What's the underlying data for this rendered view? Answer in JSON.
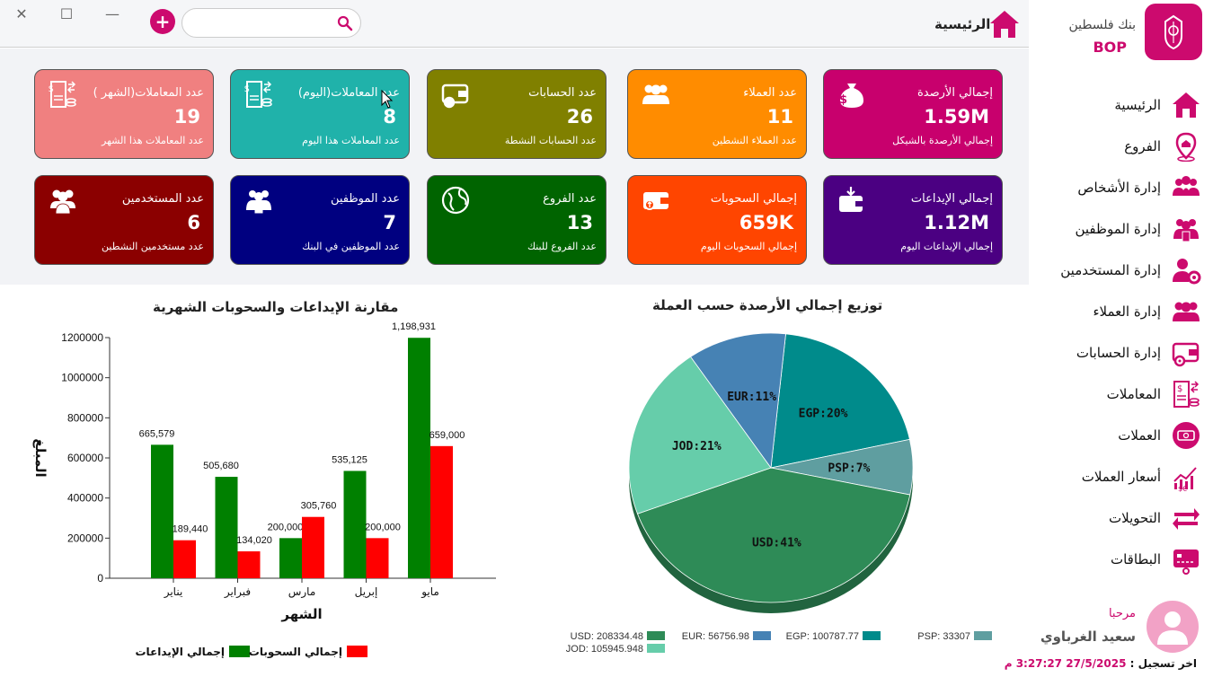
{
  "window": {
    "close": "✕",
    "maximize": "☐",
    "minimize": "—"
  },
  "topbar": {
    "title": "الرئيسية",
    "search_placeholder": "",
    "search_value": "",
    "add_label": "+"
  },
  "bank": {
    "name": "بنك فلسطين",
    "code": "BOP"
  },
  "sidebar": {
    "items": [
      {
        "label": "الرئيسية",
        "icon": "home-icon"
      },
      {
        "label": "الفروع",
        "icon": "branch-pin-icon"
      },
      {
        "label": "إدارة الأشخاص",
        "icon": "people-icon"
      },
      {
        "label": "إدارة الموظفين",
        "icon": "employees-icon"
      },
      {
        "label": "إدارة المستخدمين",
        "icon": "user-gear-icon"
      },
      {
        "label": "إدارة العملاء",
        "icon": "clients-icon"
      },
      {
        "label": "إدارة الحسابات",
        "icon": "wallet-gear-icon"
      },
      {
        "label": "المعاملات",
        "icon": "transactions-icon"
      },
      {
        "label": "العملات",
        "icon": "currency-icon"
      },
      {
        "label": "أسعار العملات",
        "icon": "exchange-rate-icon"
      },
      {
        "label": "التحويلات",
        "icon": "transfer-icon"
      },
      {
        "label": "البطاقات",
        "icon": "card-icon"
      }
    ]
  },
  "user": {
    "greeting": "مرحبا",
    "name": "سعيد الغرباوي",
    "last_login_label": "اخر تسجيل :",
    "last_login_value": "27/5/2025 3:27:27 م"
  },
  "colors": {
    "accent": "#cc0a6e"
  },
  "cards": [
    {
      "title": "إجمالي الأرصدة",
      "value": "1.59M",
      "sub": "إجمالي الأرصدة بالشيكل",
      "color": "#c8006d",
      "icon": "money-bag-icon"
    },
    {
      "title": "عدد العملاء",
      "value": "11",
      "sub": "عدد العملاء النشطين",
      "color": "#ff8c00",
      "icon": "clients-icon"
    },
    {
      "title": "عدد الحسابات",
      "value": "26",
      "sub": "عدد الحسابات النشطة",
      "color": "#808000",
      "icon": "wallet-gear-icon"
    },
    {
      "title": "عدد المعاملات(اليوم)",
      "value": "8",
      "sub": "عدد المعاملات  هذا اليوم",
      "color": "#20b2aa",
      "icon": "transactions-icon"
    },
    {
      "title": "عدد المعاملات(الشهر )",
      "value": "19",
      "sub": "عدد المعاملات هذا الشهر",
      "color": "#f08080",
      "icon": "transactions-icon"
    },
    {
      "title": "إجمالي الإيداعات",
      "value": "1.12M",
      "sub": "إجمالي الإيداعات اليوم",
      "color": "#4b0082",
      "icon": "deposit-wallet-icon"
    },
    {
      "title": "إجمالي السحوبات",
      "value": "659K",
      "sub": "إجمالي السحوبات اليوم",
      "color": "#ff4500",
      "icon": "withdraw-wallet-icon"
    },
    {
      "title": "عدد الفروع",
      "value": "13",
      "sub": "عدد الفروع للبنك",
      "color": "#006400",
      "icon": "globe-icon"
    },
    {
      "title": "عدد الموظفين",
      "value": "7",
      "sub": "عدد الموظفين في البنك",
      "color": "#000080",
      "icon": "employees-icon"
    },
    {
      "title": "عدد المستخدمين",
      "value": "6",
      "sub": "عدد مستخدمين  النشطين",
      "color": "#8b0000",
      "icon": "users-icon"
    }
  ],
  "pie": {
    "title": "توزيع إجمالي الأرصدة حسب العملة",
    "legend": [
      {
        "label": "USD: 208334.48",
        "color": "#2e8b57"
      },
      {
        "label": "EUR: 56756.98",
        "color": "#4682b4"
      },
      {
        "label": "EGP: 100787.77",
        "color": "#008b8b"
      },
      {
        "label": "PSP: 33307",
        "color": "#5f9ea0"
      },
      {
        "label": "JOD: 105945.948",
        "color": "#66cdaa"
      }
    ]
  },
  "bar": {
    "legend_deposits": "إجمالي الإيداعات",
    "legend_withdrawals": "إجمالي السحوبات"
  },
  "chart_data": [
    {
      "type": "pie",
      "title": "توزيع إجمالي الأرصدة حسب العملة",
      "slices": [
        {
          "label": "EGP:20%",
          "name": "EGP",
          "value": 100787.77,
          "color": "#008b8b"
        },
        {
          "label": "PSP:7%",
          "name": "PSP",
          "value": 33307,
          "color": "#5f9ea0"
        },
        {
          "label": "USD:41%",
          "name": "USD",
          "value": 208334.48,
          "color": "#2e8b57"
        },
        {
          "label": "JOD:21%",
          "name": "JOD",
          "value": 105945.948,
          "color": "#66cdaa"
        },
        {
          "label": "EUR:11%",
          "name": "EUR",
          "value": 56756.98,
          "color": "#4682b4"
        }
      ],
      "legend_position": "bottom"
    },
    {
      "type": "bar",
      "title": "مقارنة الإيداعات والسحوبات الشهرية",
      "xlabel": "الشهر",
      "ylabel": "المبلغ",
      "categories": [
        "يناير",
        "فبراير",
        "مارس",
        "إبريل",
        "مايو"
      ],
      "series": [
        {
          "name": "إجمالي الإيداعات",
          "values": [
            665579,
            505680,
            200000,
            535125,
            1198931
          ],
          "labels": [
            "665,579",
            "505,680",
            "200,000",
            "535,125",
            "1,198,931"
          ],
          "color": "#008000"
        },
        {
          "name": "إجمالي السحوبات",
          "values": [
            189440,
            134020,
            305760,
            200000,
            659000
          ],
          "labels": [
            "189,440",
            "134,020",
            "305,760",
            "200,000",
            "659,000"
          ],
          "color": "#ff0000"
        }
      ],
      "yticks": [
        "0",
        "200000",
        "400000",
        "600000",
        "800000",
        "1000000",
        "1200000"
      ],
      "ylim": [
        0,
        1200000
      ],
      "legend_position": "bottom"
    }
  ]
}
